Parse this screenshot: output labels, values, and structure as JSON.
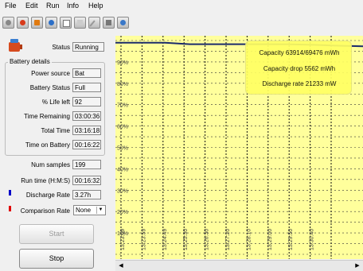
{
  "menu": {
    "file": "File",
    "edit": "Edit",
    "run": "Run",
    "info": "Info",
    "help": "Help"
  },
  "toolbar": {
    "icons": [
      "record-icon",
      "stop-icon",
      "battery-icon",
      "refresh-icon",
      "report-icon",
      "graph-icon",
      "wand-icon",
      "export-icon",
      "globe-icon"
    ]
  },
  "status": {
    "label": "Status",
    "value": "Running"
  },
  "battery_details": {
    "title": "Battery details",
    "rows": [
      {
        "label": "Power source",
        "value": "Bat"
      },
      {
        "label": "Battery Status",
        "value": "Full"
      },
      {
        "label": "% Life left",
        "value": "92"
      },
      {
        "label": "Time Remaining",
        "value": "03:00:36"
      },
      {
        "label": "Total Time",
        "value": "03:16:18"
      },
      {
        "label": "Time on Battery",
        "value": "00:16:22"
      }
    ]
  },
  "samples": {
    "label": "Num samples",
    "value": "199"
  },
  "runtime": {
    "label": "Run time (H:M:S)",
    "value": "00:16:32"
  },
  "discharge": {
    "label": "Discharge Rate",
    "value": "3.27h",
    "color": "#0000c8"
  },
  "comparison": {
    "label": "Comparison Rate",
    "value": "None",
    "color": "#e00000"
  },
  "buttons": {
    "start": "Start",
    "stop": "Stop"
  },
  "chart_data": {
    "type": "line",
    "y_tick_labels": [
      "90%",
      "80%",
      "70%",
      "60%",
      "50%",
      "40%",
      "30%",
      "20%",
      "10%"
    ],
    "x_tick_labels": [
      "13:23:09",
      "13:23:59",
      "13:24:49",
      "13:25:30",
      "13:26:30",
      "13:27:20",
      "13:28:10",
      "13:29:00",
      "13:29:50",
      "13:30:40"
    ],
    "ylim": [
      0,
      100
    ],
    "series": [
      {
        "values": [
          99,
          99,
          99,
          98.3,
          98.3,
          98.3,
          98.3,
          98.2,
          98.0,
          97.6,
          97.3
        ],
        "color": "#1a2a6c"
      }
    ],
    "annotations": [
      "Capacity 63914/69476 mWh",
      "Capacity drop 5562 mWh",
      "Discharge rate 21233 mW"
    ],
    "grid": true,
    "background": "#ffff9c"
  }
}
